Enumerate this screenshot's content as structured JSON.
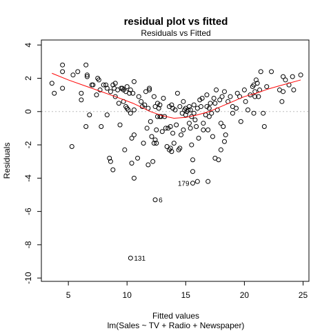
{
  "chart_data": {
    "type": "scatter",
    "title": "residual plot vs fitted",
    "subtitle": "Residuals vs Fitted",
    "xlabel": "Fitted values",
    "xlabel_sub": "lm(Sales ~ TV + Radio + Newspaper)",
    "ylabel": "Residuals",
    "xlim": [
      2.7,
      25.5
    ],
    "ylim": [
      -10.2,
      4.3
    ],
    "x_ticks": [
      5,
      10,
      15,
      20,
      25
    ],
    "y_ticks": [
      4,
      2,
      0,
      -2,
      -4,
      -6,
      -8,
      -10
    ],
    "zero_line": 0,
    "grid": false,
    "colors": {
      "points": "#000000",
      "smooth": "#ff0000",
      "zero_line": "#bbbbbb"
    },
    "points": [
      {
        "x": 3.6,
        "y": 1.7
      },
      {
        "x": 3.8,
        "y": 1.1
      },
      {
        "x": 4.5,
        "y": 2.8
      },
      {
        "x": 4.5,
        "y": 2.4
      },
      {
        "x": 4.5,
        "y": 1.4
      },
      {
        "x": 5.3,
        "y": -2.1
      },
      {
        "x": 5.4,
        "y": 2.2
      },
      {
        "x": 5.8,
        "y": 2.4
      },
      {
        "x": 6.1,
        "y": 1.1
      },
      {
        "x": 6.1,
        "y": 0.7
      },
      {
        "x": 6.5,
        "y": -0.9
      },
      {
        "x": 6.5,
        "y": 2.8
      },
      {
        "x": 6.6,
        "y": 2.2
      },
      {
        "x": 6.6,
        "y": 2.1
      },
      {
        "x": 6.8,
        "y": -0.2
      },
      {
        "x": 7.0,
        "y": 1.6
      },
      {
        "x": 7.1,
        "y": 1.6
      },
      {
        "x": 7.4,
        "y": 1.0
      },
      {
        "x": 7.5,
        "y": 2.0
      },
      {
        "x": 7.6,
        "y": 1.9
      },
      {
        "x": 7.8,
        "y": -0.9
      },
      {
        "x": 7.7,
        "y": 1.3
      },
      {
        "x": 8.0,
        "y": 1.6
      },
      {
        "x": 8.2,
        "y": 1.6
      },
      {
        "x": 8.3,
        "y": -0.2
      },
      {
        "x": 8.3,
        "y": 1.4
      },
      {
        "x": 8.5,
        "y": -2.8
      },
      {
        "x": 8.6,
        "y": 1.2
      },
      {
        "x": 8.6,
        "y": -3.0
      },
      {
        "x": 8.8,
        "y": -3.5
      },
      {
        "x": 8.8,
        "y": 1.6
      },
      {
        "x": 8.9,
        "y": 1.4
      },
      {
        "x": 9.0,
        "y": 0.9
      },
      {
        "x": 9.0,
        "y": 1.7
      },
      {
        "x": 9.2,
        "y": 1.3
      },
      {
        "x": 9.3,
        "y": 0.5
      },
      {
        "x": 9.4,
        "y": -0.8
      },
      {
        "x": 9.5,
        "y": 1.4
      },
      {
        "x": 9.6,
        "y": 1.4
      },
      {
        "x": 9.7,
        "y": 1.3
      },
      {
        "x": 9.7,
        "y": 0.6
      },
      {
        "x": 9.8,
        "y": -2.3
      },
      {
        "x": 9.9,
        "y": 1.2
      },
      {
        "x": 9.9,
        "y": 0.3
      },
      {
        "x": 10.0,
        "y": 0.2
      },
      {
        "x": 10.0,
        "y": 1.5
      },
      {
        "x": 10.1,
        "y": 0.1
      },
      {
        "x": 10.2,
        "y": 1.1
      },
      {
        "x": 10.3,
        "y": -0.1
      },
      {
        "x": 10.3,
        "y": 1.3
      },
      {
        "x": 10.4,
        "y": -1.6
      },
      {
        "x": 10.4,
        "y": -3.1
      },
      {
        "x": 10.5,
        "y": 1.1
      },
      {
        "x": 10.6,
        "y": -1.4
      },
      {
        "x": 10.6,
        "y": -4.0
      },
      {
        "x": 10.6,
        "y": 0.1
      },
      {
        "x": 10.6,
        "y": 1.8
      },
      {
        "x": 10.9,
        "y": -2.8
      },
      {
        "x": 11.0,
        "y": 0.9
      },
      {
        "x": 11.2,
        "y": 0.6
      },
      {
        "x": 11.3,
        "y": 0.3
      },
      {
        "x": 11.4,
        "y": -1.9
      },
      {
        "x": 11.5,
        "y": 0.4
      },
      {
        "x": 11.6,
        "y": 1.2
      },
      {
        "x": 11.7,
        "y": -1.0
      },
      {
        "x": 11.8,
        "y": 0.2
      },
      {
        "x": 11.8,
        "y": -3.2
      },
      {
        "x": 11.9,
        "y": 1.4
      },
      {
        "x": 11.9,
        "y": 1.3
      },
      {
        "x": 12.0,
        "y": -0.6
      },
      {
        "x": 12.1,
        "y": -1.5
      },
      {
        "x": 12.2,
        "y": -3.0
      },
      {
        "x": 12.3,
        "y": 0.9
      },
      {
        "x": 12.3,
        "y": -1.9
      },
      {
        "x": 12.4,
        "y": 0.3
      },
      {
        "x": 12.4,
        "y": -1.7
      },
      {
        "x": 12.5,
        "y": -1.1
      },
      {
        "x": 12.5,
        "y": -1.9
      },
      {
        "x": 12.6,
        "y": 0.5
      },
      {
        "x": 12.6,
        "y": -0.3
      },
      {
        "x": 12.7,
        "y": 0.2
      },
      {
        "x": 12.8,
        "y": 0.4
      },
      {
        "x": 12.8,
        "y": -0.3
      },
      {
        "x": 12.9,
        "y": -0.3
      },
      {
        "x": 13.0,
        "y": -1.2
      },
      {
        "x": 13.1,
        "y": 0.8
      },
      {
        "x": 13.2,
        "y": -0.3
      },
      {
        "x": 13.3,
        "y": -1.0
      },
      {
        "x": 13.4,
        "y": -2.1
      },
      {
        "x": 13.5,
        "y": -1.0
      },
      {
        "x": 13.6,
        "y": -2.3
      },
      {
        "x": 13.6,
        "y": 0.3
      },
      {
        "x": 13.7,
        "y": -2.2
      },
      {
        "x": 13.7,
        "y": -0.9
      },
      {
        "x": 13.8,
        "y": 0.4
      },
      {
        "x": 13.8,
        "y": -2.4
      },
      {
        "x": 13.9,
        "y": -1.3
      },
      {
        "x": 13.9,
        "y": 0.2
      },
      {
        "x": 14.0,
        "y": -1.9
      },
      {
        "x": 14.1,
        "y": 0.1
      },
      {
        "x": 14.2,
        "y": -0.8
      },
      {
        "x": 14.3,
        "y": 1.1
      },
      {
        "x": 14.4,
        "y": -2.3
      },
      {
        "x": 14.5,
        "y": 0.3
      },
      {
        "x": 14.5,
        "y": -2.2
      },
      {
        "x": 14.6,
        "y": -1.4
      },
      {
        "x": 14.7,
        "y": -0.1
      },
      {
        "x": 14.8,
        "y": 0.6
      },
      {
        "x": 14.8,
        "y": -1.1
      },
      {
        "x": 14.9,
        "y": 0.1
      },
      {
        "x": 15.0,
        "y": -0.2
      },
      {
        "x": 15.0,
        "y": 0.2
      },
      {
        "x": 15.1,
        "y": 0.0
      },
      {
        "x": 15.2,
        "y": 0.1
      },
      {
        "x": 15.3,
        "y": -0.7
      },
      {
        "x": 15.3,
        "y": 0.3
      },
      {
        "x": 15.4,
        "y": -1.0
      },
      {
        "x": 15.4,
        "y": 0.1
      },
      {
        "x": 15.5,
        "y": -0.3
      },
      {
        "x": 15.5,
        "y": -2.0
      },
      {
        "x": 15.6,
        "y": -2.9
      },
      {
        "x": 15.6,
        "y": -3.6
      },
      {
        "x": 15.7,
        "y": -0.1
      },
      {
        "x": 15.7,
        "y": 0.4
      },
      {
        "x": 15.8,
        "y": -0.5
      },
      {
        "x": 15.9,
        "y": -0.9
      },
      {
        "x": 16.0,
        "y": -4.2
      },
      {
        "x": 16.0,
        "y": 0.2
      },
      {
        "x": 16.1,
        "y": -1.6
      },
      {
        "x": 16.2,
        "y": 0.7
      },
      {
        "x": 16.3,
        "y": 0.3
      },
      {
        "x": 16.4,
        "y": 0.8
      },
      {
        "x": 16.5,
        "y": -0.7
      },
      {
        "x": 16.5,
        "y": -1.1
      },
      {
        "x": 16.7,
        "y": -0.2
      },
      {
        "x": 16.8,
        "y": 1.0
      },
      {
        "x": 16.8,
        "y": 0.3
      },
      {
        "x": 16.9,
        "y": -1.1
      },
      {
        "x": 16.9,
        "y": -4.2
      },
      {
        "x": 17.0,
        "y": 0.2
      },
      {
        "x": 17.0,
        "y": -0.3
      },
      {
        "x": 17.1,
        "y": 0.5
      },
      {
        "x": 17.2,
        "y": -0.1
      },
      {
        "x": 17.3,
        "y": -1.5
      },
      {
        "x": 17.4,
        "y": 0.8
      },
      {
        "x": 17.5,
        "y": -2.8
      },
      {
        "x": 17.5,
        "y": 0.5
      },
      {
        "x": 17.6,
        "y": 1.3
      },
      {
        "x": 17.7,
        "y": 0.1
      },
      {
        "x": 17.8,
        "y": -2.9
      },
      {
        "x": 17.9,
        "y": 0.7
      },
      {
        "x": 18.0,
        "y": -0.7
      },
      {
        "x": 18.0,
        "y": -2.3
      },
      {
        "x": 18.1,
        "y": 0.9
      },
      {
        "x": 18.2,
        "y": -0.9
      },
      {
        "x": 18.3,
        "y": -1.8
      },
      {
        "x": 18.3,
        "y": 1.2
      },
      {
        "x": 18.4,
        "y": -1.4
      },
      {
        "x": 18.6,
        "y": 0.6
      },
      {
        "x": 18.8,
        "y": 0.9
      },
      {
        "x": 19.0,
        "y": -0.1
      },
      {
        "x": 19.0,
        "y": 0.3
      },
      {
        "x": 19.3,
        "y": 0.2
      },
      {
        "x": 19.4,
        "y": 1.1
      },
      {
        "x": 19.6,
        "y": 0.9
      },
      {
        "x": 19.7,
        "y": -0.6
      },
      {
        "x": 20.0,
        "y": 1.3
      },
      {
        "x": 20.1,
        "y": 0.6
      },
      {
        "x": 20.3,
        "y": 0.1
      },
      {
        "x": 20.5,
        "y": 1.0
      },
      {
        "x": 20.7,
        "y": 1.5
      },
      {
        "x": 20.8,
        "y": 1.6
      },
      {
        "x": 20.8,
        "y": -0.1
      },
      {
        "x": 20.9,
        "y": 1.2
      },
      {
        "x": 20.9,
        "y": 0.9
      },
      {
        "x": 21.0,
        "y": 1.9
      },
      {
        "x": 21.1,
        "y": 1.7
      },
      {
        "x": 21.2,
        "y": 0.9
      },
      {
        "x": 21.3,
        "y": 1.3
      },
      {
        "x": 21.4,
        "y": 2.4
      },
      {
        "x": 21.6,
        "y": -0.1
      },
      {
        "x": 21.7,
        "y": -0.9
      },
      {
        "x": 21.9,
        "y": 1.5
      },
      {
        "x": 22.3,
        "y": 2.4
      },
      {
        "x": 23.0,
        "y": 1.3
      },
      {
        "x": 23.2,
        "y": 0.6
      },
      {
        "x": 23.3,
        "y": 2.1
      },
      {
        "x": 23.3,
        "y": 1.2
      },
      {
        "x": 23.5,
        "y": 1.9
      },
      {
        "x": 23.8,
        "y": 1.6
      },
      {
        "x": 24.1,
        "y": 2.1
      },
      {
        "x": 24.2,
        "y": 1.3
      },
      {
        "x": 24.8,
        "y": 2.2
      },
      {
        "x": 10.3,
        "y": -8.8
      },
      {
        "x": 12.4,
        "y": -5.3
      },
      {
        "x": 15.6,
        "y": -4.3
      }
    ],
    "labeled_points": [
      {
        "label": "131",
        "x": 10.3,
        "y": -8.8
      },
      {
        "label": "6",
        "x": 12.4,
        "y": -5.3
      },
      {
        "label": "179",
        "x": 15.6,
        "y": -4.3
      }
    ],
    "smooth_line": [
      {
        "x": 3.6,
        "y": 2.3
      },
      {
        "x": 5,
        "y": 1.9
      },
      {
        "x": 7,
        "y": 1.4
      },
      {
        "x": 9,
        "y": 0.9
      },
      {
        "x": 10.5,
        "y": 0.5
      },
      {
        "x": 12,
        "y": 0.0
      },
      {
        "x": 13,
        "y": -0.25
      },
      {
        "x": 14,
        "y": -0.4
      },
      {
        "x": 15,
        "y": -0.35
      },
      {
        "x": 16,
        "y": -0.2
      },
      {
        "x": 17,
        "y": 0.0
      },
      {
        "x": 18,
        "y": 0.3
      },
      {
        "x": 19,
        "y": 0.6
      },
      {
        "x": 20,
        "y": 0.9
      },
      {
        "x": 21,
        "y": 1.1
      },
      {
        "x": 22,
        "y": 1.35
      },
      {
        "x": 23,
        "y": 1.55
      },
      {
        "x": 24.8,
        "y": 1.9
      }
    ]
  }
}
